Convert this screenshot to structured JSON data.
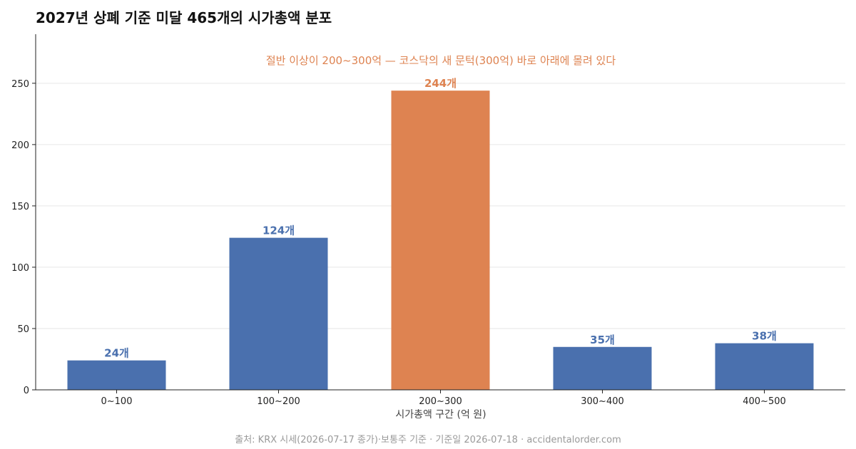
{
  "title": "2027년 상폐 기준 미달 465개의 시가총액 분포",
  "source": "출처: KRX 시세(2026-07-17 종가)·보통주 기준 · 기준일 2026-07-18 · accidentalorder.com",
  "colors": {
    "bar": "#4a70ae",
    "highlight": "#de8351",
    "bar_label": "#4a70ae",
    "highlight_label": "#de8351",
    "annotation": "#de8351",
    "axis": "#222222",
    "grid": "#e6e6e6"
  },
  "chart_data": {
    "type": "bar",
    "categories": [
      "0~100",
      "100~200",
      "200~300",
      "300~400",
      "400~500"
    ],
    "values": [
      24,
      124,
      244,
      35,
      38
    ],
    "data_labels": [
      "24개",
      "124개",
      "244개",
      "35개",
      "38개"
    ],
    "highlight_index": 2,
    "xlabel": "시가총액 구간 (억 원)",
    "ylabel": "",
    "ylim": [
      0,
      290
    ],
    "yticks": [
      0,
      50,
      100,
      150,
      200,
      250
    ],
    "grid": "horizontal",
    "annotation": "절반 이상이 200~300억 — 코스닥의 새 문턱(300억) 바로 아래에 몰려 있다"
  }
}
